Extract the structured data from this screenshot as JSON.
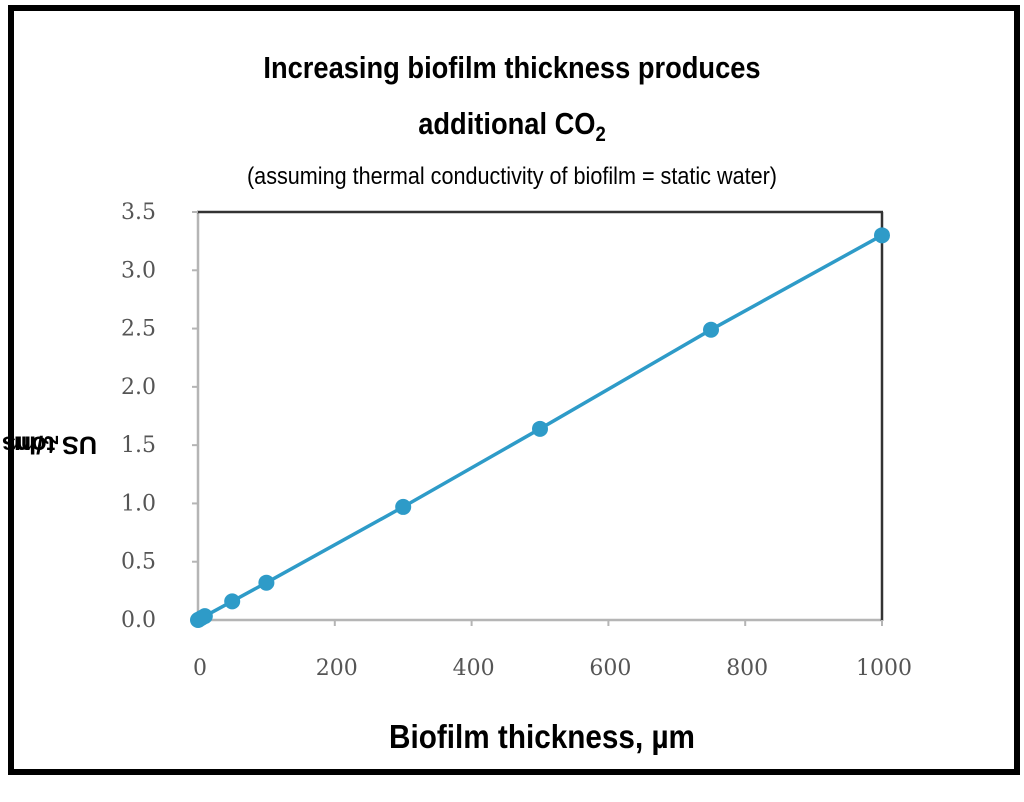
{
  "chart_data": {
    "type": "line",
    "title": "Increasing biofilm thickness produces additional CO₂",
    "title_line1": "Increasing biofilm thickness produces",
    "title_line2": "additional CO",
    "title_line2_sub": "2",
    "subtitle": "(assuming thermal conductivity of biofilm = static water)",
    "xlabel": "Biofilm thickness, µm",
    "ylabel_prefix": "US tons CO",
    "ylabel_sub": "2",
    "ylabel_suffix": "/hr",
    "xlim": [
      0,
      1000
    ],
    "ylim": [
      0,
      3.5
    ],
    "x_ticks": [
      "0",
      "200",
      "400",
      "600",
      "800",
      "1000"
    ],
    "y_ticks": [
      "0.0",
      "0.5",
      "1.0",
      "1.5",
      "2.0",
      "2.5",
      "3.0",
      "3.5"
    ],
    "grid": false,
    "series_color": "#2E9BC8",
    "series": [
      {
        "x": [
          0,
          1,
          5,
          10,
          50,
          100,
          300,
          500,
          750,
          1000
        ],
        "y": [
          0.0,
          0.003,
          0.017,
          0.033,
          0.16,
          0.32,
          0.97,
          1.64,
          2.49,
          3.3
        ]
      }
    ]
  }
}
